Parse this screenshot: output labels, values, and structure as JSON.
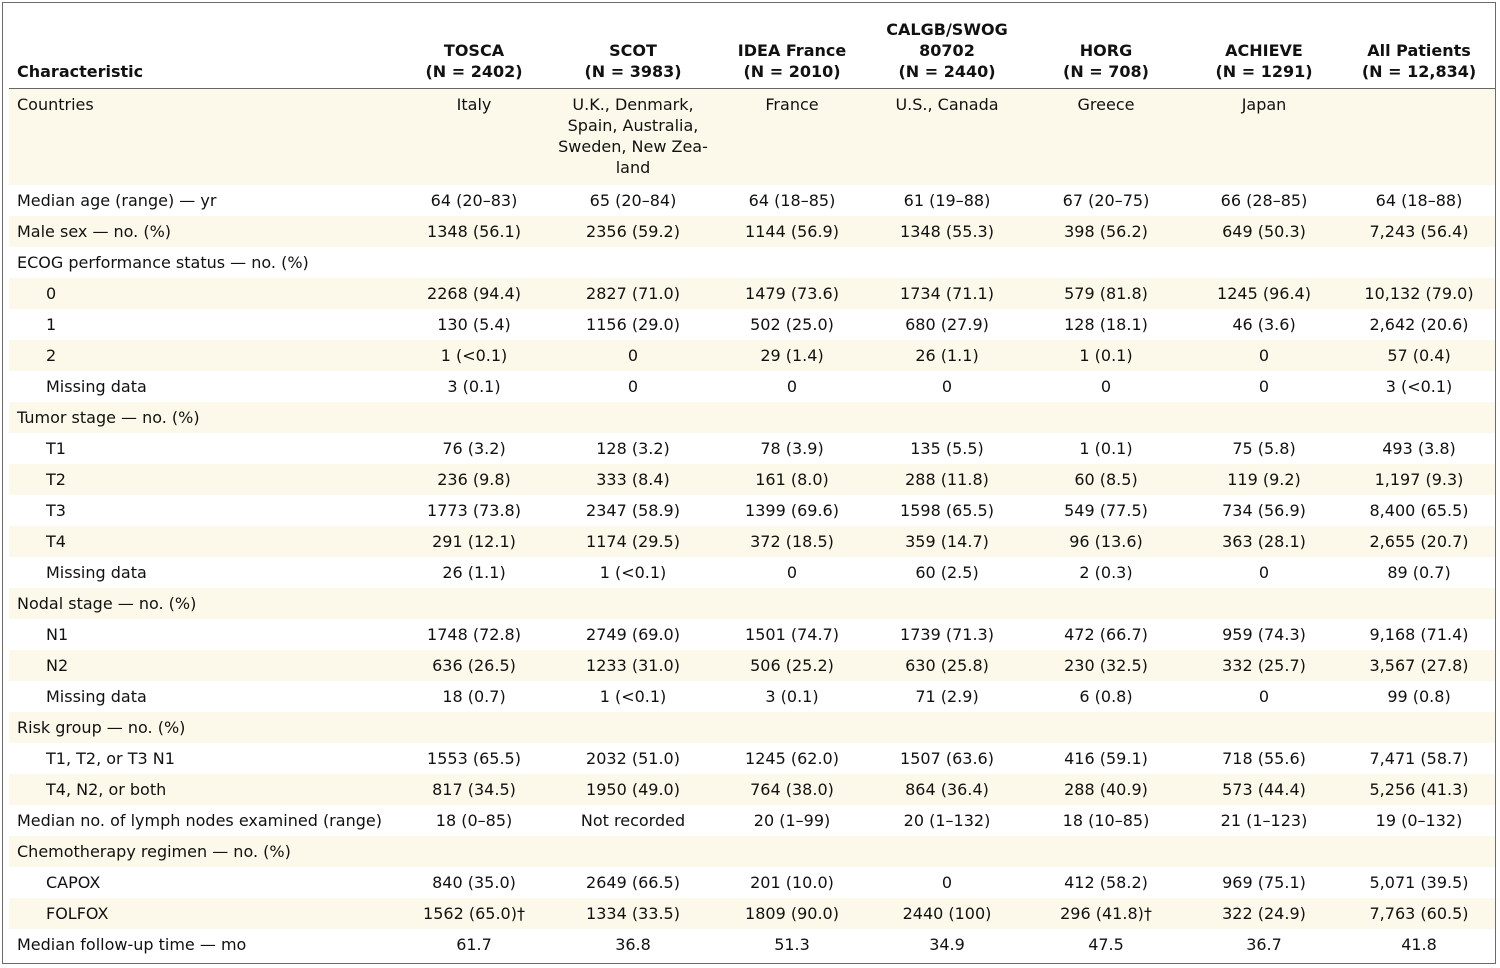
{
  "header": {
    "characteristic": "Characteristic",
    "columns": [
      {
        "name": "TOSCA",
        "n": "(N = 2402)"
      },
      {
        "name": "SCOT",
        "n": "(N = 3983)"
      },
      {
        "name": "IDEA France",
        "n": "(N = 2010)"
      },
      {
        "name": "CALGB/SWOG 80702",
        "n": "(N = 2440)"
      },
      {
        "name": "HORG",
        "n": "(N = 708)"
      },
      {
        "name": "ACHIEVE",
        "n": "(N = 1291)"
      },
      {
        "name": "All Patients",
        "n": "(N = 12,834)"
      }
    ]
  },
  "rows": [
    {
      "label": "Countries",
      "values": [
        "Italy",
        "U.K., Denmark, Spain, Australia, Sweden, New Zea-land",
        "France",
        "U.S., Canada",
        "Greece",
        "Japan",
        ""
      ]
    },
    {
      "label": "Median age (range) — yr",
      "values": [
        "64 (20–83)",
        "65 (20–84)",
        "64 (18–85)",
        "61 (19–88)",
        "67 (20–75)",
        "66 (28–85)",
        "64 (18–88)"
      ]
    },
    {
      "label": "Male sex — no. (%)",
      "values": [
        "1348 (56.1)",
        "2356 (59.2)",
        "1144 (56.9)",
        "1348 (55.3)",
        "398 (56.2)",
        "649 (50.3)",
        "7,243 (56.4)"
      ]
    },
    {
      "label": "ECOG performance status — no. (%)",
      "values": [
        "",
        "",
        "",
        "",
        "",
        "",
        ""
      ]
    },
    {
      "label": "0",
      "values": [
        "2268 (94.4)",
        "2827 (71.0)",
        "1479 (73.6)",
        "1734 (71.1)",
        "579 (81.8)",
        "1245 (96.4)",
        "10,132 (79.0)"
      ]
    },
    {
      "label": "1",
      "values": [
        "130 (5.4)",
        "1156 (29.0)",
        "502 (25.0)",
        "680 (27.9)",
        "128 (18.1)",
        "46 (3.6)",
        "2,642 (20.6)"
      ]
    },
    {
      "label": "2",
      "values": [
        "1 (<0.1)",
        "0",
        "29 (1.4)",
        "26 (1.1)",
        "1 (0.1)",
        "0",
        "57 (0.4)"
      ]
    },
    {
      "label": "Missing data",
      "values": [
        "3 (0.1)",
        "0",
        "0",
        "0",
        "0",
        "0",
        "3 (<0.1)"
      ]
    },
    {
      "label": "Tumor stage — no. (%)",
      "values": [
        "",
        "",
        "",
        "",
        "",
        "",
        ""
      ]
    },
    {
      "label": "T1",
      "values": [
        "76 (3.2)",
        "128 (3.2)",
        "78 (3.9)",
        "135 (5.5)",
        "1 (0.1)",
        "75 (5.8)",
        "493 (3.8)"
      ]
    },
    {
      "label": "T2",
      "values": [
        "236 (9.8)",
        "333 (8.4)",
        "161 (8.0)",
        "288 (11.8)",
        "60 (8.5)",
        "119 (9.2)",
        "1,197 (9.3)"
      ]
    },
    {
      "label": "T3",
      "values": [
        "1773 (73.8)",
        "2347 (58.9)",
        "1399 (69.6)",
        "1598 (65.5)",
        "549 (77.5)",
        "734 (56.9)",
        "8,400 (65.5)"
      ]
    },
    {
      "label": "T4",
      "values": [
        "291 (12.1)",
        "1174 (29.5)",
        "372 (18.5)",
        "359 (14.7)",
        "96 (13.6)",
        "363 (28.1)",
        "2,655 (20.7)"
      ]
    },
    {
      "label": "Missing data",
      "values": [
        "26 (1.1)",
        "1 (<0.1)",
        "0",
        "60 (2.5)",
        "2 (0.3)",
        "0",
        "89 (0.7)"
      ]
    },
    {
      "label": "Nodal stage — no. (%)",
      "values": [
        "",
        "",
        "",
        "",
        "",
        "",
        ""
      ]
    },
    {
      "label": "N1",
      "values": [
        "1748 (72.8)",
        "2749 (69.0)",
        "1501 (74.7)",
        "1739 (71.3)",
        "472 (66.7)",
        "959 (74.3)",
        "9,168 (71.4)"
      ]
    },
    {
      "label": "N2",
      "values": [
        "636 (26.5)",
        "1233 (31.0)",
        "506 (25.2)",
        "630 (25.8)",
        "230 (32.5)",
        "332 (25.7)",
        "3,567 (27.8)"
      ]
    },
    {
      "label": "Missing data",
      "values": [
        "18 (0.7)",
        "1 (<0.1)",
        "3 (0.1)",
        "71 (2.9)",
        "6 (0.8)",
        "0",
        "99 (0.8)"
      ]
    },
    {
      "label": "Risk group — no. (%)",
      "values": [
        "",
        "",
        "",
        "",
        "",
        "",
        ""
      ]
    },
    {
      "label": "T1, T2, or T3 N1",
      "values": [
        "1553 (65.5)",
        "2032 (51.0)",
        "1245 (62.0)",
        "1507 (63.6)",
        "416 (59.1)",
        "718 (55.6)",
        "7,471 (58.7)"
      ]
    },
    {
      "label": "T4, N2, or both",
      "values": [
        "817 (34.5)",
        "1950 (49.0)",
        "764 (38.0)",
        "864 (36.4)",
        "288 (40.9)",
        "573 (44.4)",
        "5,256 (41.3)"
      ]
    },
    {
      "label": "Median no. of lymph nodes examined (range)",
      "values": [
        "18 (0–85)",
        "Not recorded",
        "20 (1–99)",
        "20 (1–132)",
        "18 (10–85)",
        "21 (1–123)",
        "19 (0–132)"
      ]
    },
    {
      "label": "Chemotherapy regimen — no. (%)",
      "values": [
        "",
        "",
        "",
        "",
        "",
        "",
        ""
      ]
    },
    {
      "label": "CAPOX",
      "values": [
        "840 (35.0)",
        "2649 (66.5)",
        "201 (10.0)",
        "0",
        "412 (58.2)",
        "969 (75.1)",
        "5,071 (39.5)"
      ]
    },
    {
      "label": "FOLFOX",
      "values": [
        "1562 (65.0)†",
        "1334 (33.5)",
        "1809 (90.0)",
        "2440 (100)",
        "296 (41.8)†",
        "322 (24.9)",
        "7,763 (60.5)"
      ]
    },
    {
      "label": "Median follow-up time — mo",
      "values": [
        "61.7",
        "36.8",
        "51.3",
        "34.9",
        "47.5",
        "36.7",
        "41.8"
      ]
    }
  ]
}
